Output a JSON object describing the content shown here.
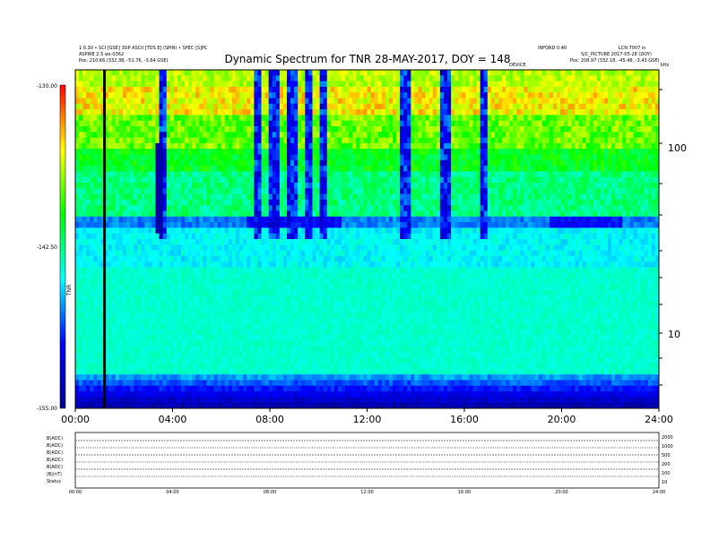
{
  "chart_data": {
    "type": "heatmap",
    "title": "Dynamic Spectrum for TNR 28-MAY-2017, DOY = 148",
    "x_ticks": [
      "00:00",
      "04:00",
      "08:00",
      "12:00",
      "16:00",
      "20:00",
      "24:00"
    ],
    "x_range_hours": [
      0,
      24
    ],
    "y_ticks_right": [
      "100",
      "10"
    ],
    "y_scale": "log",
    "colorbar": {
      "ticks": [
        "-130.00",
        "-142.50",
        "-155.00"
      ],
      "range": [
        -155.0,
        -130.0
      ],
      "label": "TNR",
      "colors": [
        "#000090",
        "#0000ff",
        "#00ffff",
        "#00ff00",
        "#ffff00",
        "#ff0000"
      ]
    },
    "vertical_marker_hours": 1.2,
    "background_level_db": -146,
    "band_level_db": -137,
    "header_left": [
      "1 0.30 • SCI [GSE] 3DP ASCII [TDS E] (SPIN) • SPEC [S]PC",
      "ASPIRE 2.5 ws-0362",
      "Pos:    210.66 (332.38, -51.76, -3.64 GSE)"
    ],
    "header_right": [
      "INFORD 0.40",
      "LCN 7007 in",
      "S/C_PICTURE 2017-05-28 (DOY)",
      "Pos:    208.97 (332.18, -45.46, -3.43 GSE)"
    ],
    "header_mid": "DEVICE",
    "top_right_unit": "kHz",
    "aux_panel_labels": [
      "B(ADC)",
      "B(ADC)",
      "B(ADC)",
      "B(ADC)",
      "B(ADC)",
      "|B|(nT)",
      "Status"
    ],
    "aux_right_values": [
      "2000",
      "1000",
      "500",
      "200",
      "100",
      "10"
    ],
    "aux_x_ticks": [
      "00:00",
      "04:00",
      "08:00",
      "12:00",
      "16:00",
      "20:00",
      "24:00"
    ]
  }
}
